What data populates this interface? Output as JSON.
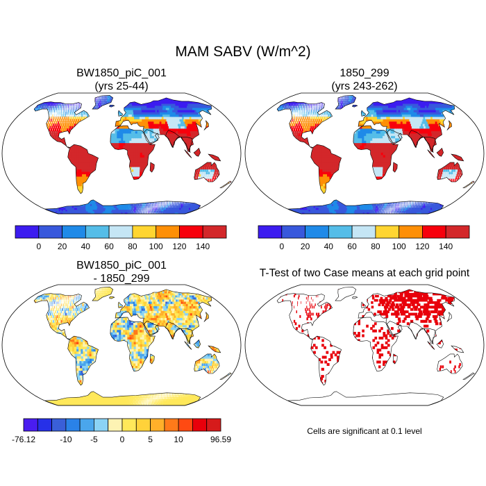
{
  "figure": {
    "title": "MAM SABV (W/m^2)",
    "note": "Cells are significant at 0.1 level"
  },
  "panels": [
    {
      "name": "case1",
      "title_line1": "BW1850_piC_001",
      "title_line2": "(yrs 25-44)"
    },
    {
      "name": "case2",
      "title_line1": "1850_299",
      "title_line2": "(yrs 243-262)"
    },
    {
      "name": "diff",
      "title_line1": "BW1850_piC_001",
      "title_line2": "- 1850_299"
    },
    {
      "name": "ttest",
      "title_line1": "T-Test of two Case means at each grid point",
      "title_line2": ""
    }
  ],
  "colors": {
    "land_outline": "#000000",
    "ocean": "#ffffff",
    "significant": "#e8000b"
  },
  "chart_data": [
    {
      "type": "heatmap",
      "map": "global land, Robinson projection",
      "title": "BW1850_piC_001 (yrs 25-44)",
      "colorbar": {
        "colors": [
          "#3c1cf0",
          "#3858dc",
          "#1f8ae8",
          "#55bde8",
          "#c5e6f5",
          "#ffd531",
          "#fe8f06",
          "#f7000c",
          "#d3272a"
        ],
        "tick_labels": [
          "0",
          "20",
          "40",
          "60",
          "80",
          "100",
          "120",
          "140"
        ]
      }
    },
    {
      "type": "heatmap",
      "map": "global land, Robinson projection",
      "title": "1850_299 (yrs 243-262)",
      "colorbar": {
        "colors": [
          "#3c1cf0",
          "#3858dc",
          "#1f8ae8",
          "#55bde8",
          "#c5e6f5",
          "#ffd531",
          "#fe8f06",
          "#f7000c",
          "#d3272a"
        ],
        "tick_labels": [
          "0",
          "20",
          "40",
          "60",
          "80",
          "100",
          "120",
          "140"
        ]
      }
    },
    {
      "type": "heatmap",
      "map": "global land, Robinson projection",
      "title": "BW1850_piC_001 - 1850_299",
      "colorbar": {
        "colors": [
          "#4a1df0",
          "#2630e8",
          "#3a5fd8",
          "#2a82e8",
          "#4aa6ec",
          "#8bd3f5",
          "#fdf3b3",
          "#ffe85a",
          "#ffd23a",
          "#ffb02a",
          "#ff7a1a",
          "#ff4a12",
          "#e8000b",
          "#d61b1b"
        ],
        "tick_labels": [
          "-76.12",
          "-10",
          "-5",
          "0",
          "5",
          "10",
          "96.59"
        ]
      }
    },
    {
      "type": "heatmap",
      "map": "global land, Robinson projection",
      "title": "T-Test of two Case means at each grid point",
      "legend": "Cells are significant at 0.1 level"
    }
  ]
}
